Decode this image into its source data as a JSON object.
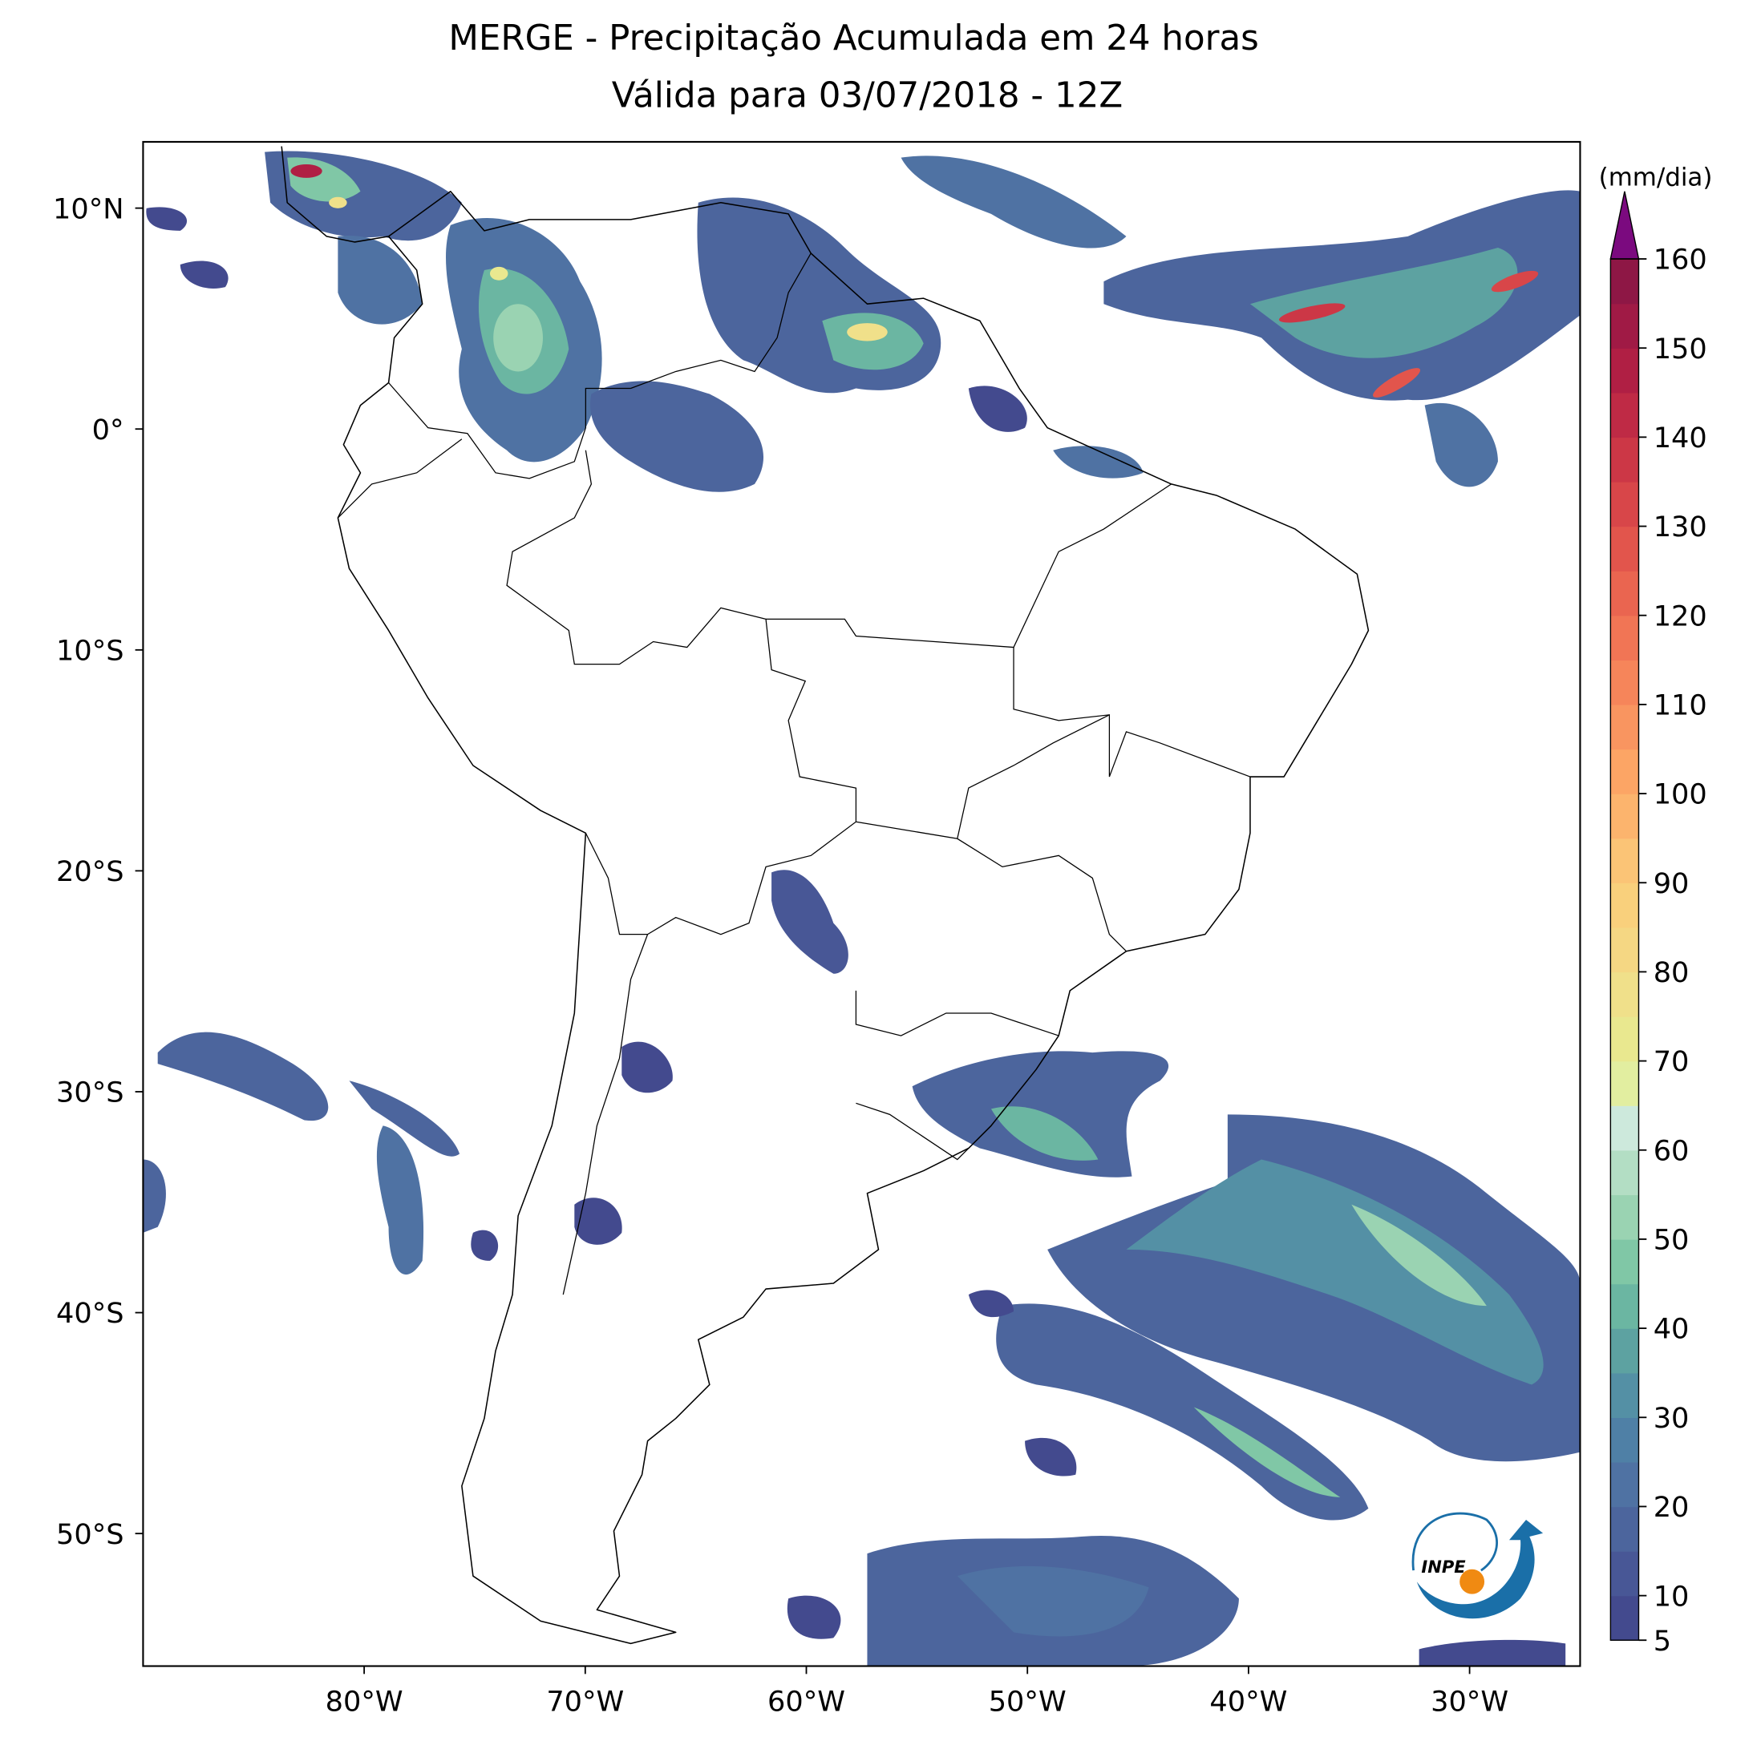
{
  "map": {
    "title": "MERGE - Precipitação Acumulada em 24 horas",
    "subtitle": "Válida para 03/07/2018 - 12Z",
    "xlim": [
      -90,
      -25
    ],
    "ylim": [
      -56,
      13
    ],
    "xticks": [
      {
        "value": -80,
        "label": "80°W"
      },
      {
        "value": -70,
        "label": "70°W"
      },
      {
        "value": -60,
        "label": "60°W"
      },
      {
        "value": -50,
        "label": "50°W"
      },
      {
        "value": -40,
        "label": "40°W"
      },
      {
        "value": -30,
        "label": "30°W"
      }
    ],
    "yticks": [
      {
        "value": 10,
        "label": "10°N"
      },
      {
        "value": 0,
        "label": "0°"
      },
      {
        "value": -10,
        "label": "10°S"
      },
      {
        "value": -20,
        "label": "20°S"
      },
      {
        "value": -30,
        "label": "30°S"
      },
      {
        "value": -40,
        "label": "40°S"
      },
      {
        "value": -50,
        "label": "50°S"
      }
    ]
  },
  "colorbar": {
    "label": "(mm/dia)",
    "clim": [
      5,
      160
    ],
    "ticks": [
      5,
      10,
      20,
      30,
      40,
      50,
      60,
      70,
      80,
      90,
      100,
      110,
      120,
      130,
      140,
      150,
      160
    ],
    "colors": [
      "#434a8e",
      "#485796",
      "#4c659d",
      "#4f72a3",
      "#4f80a6",
      "#5490a5",
      "#5da2a1",
      "#6bb6a2",
      "#80c7a6",
      "#9ad3b2",
      "#b3dec4",
      "#cde9dc",
      "#e2eea0",
      "#e9e88f",
      "#f0e08a",
      "#f5d783",
      "#f9d07c",
      "#fbc476",
      "#fcb46d",
      "#fca565",
      "#f99560",
      "#f6855a",
      "#f17555",
      "#ea6550",
      "#e2554c",
      "#d84649",
      "#cc3746",
      "#bf2a45",
      "#b01f44",
      "#a01a45",
      "#8e1745"
    ],
    "extend_color": "#7b0a7f"
  },
  "logo": {
    "text": "INPE"
  }
}
